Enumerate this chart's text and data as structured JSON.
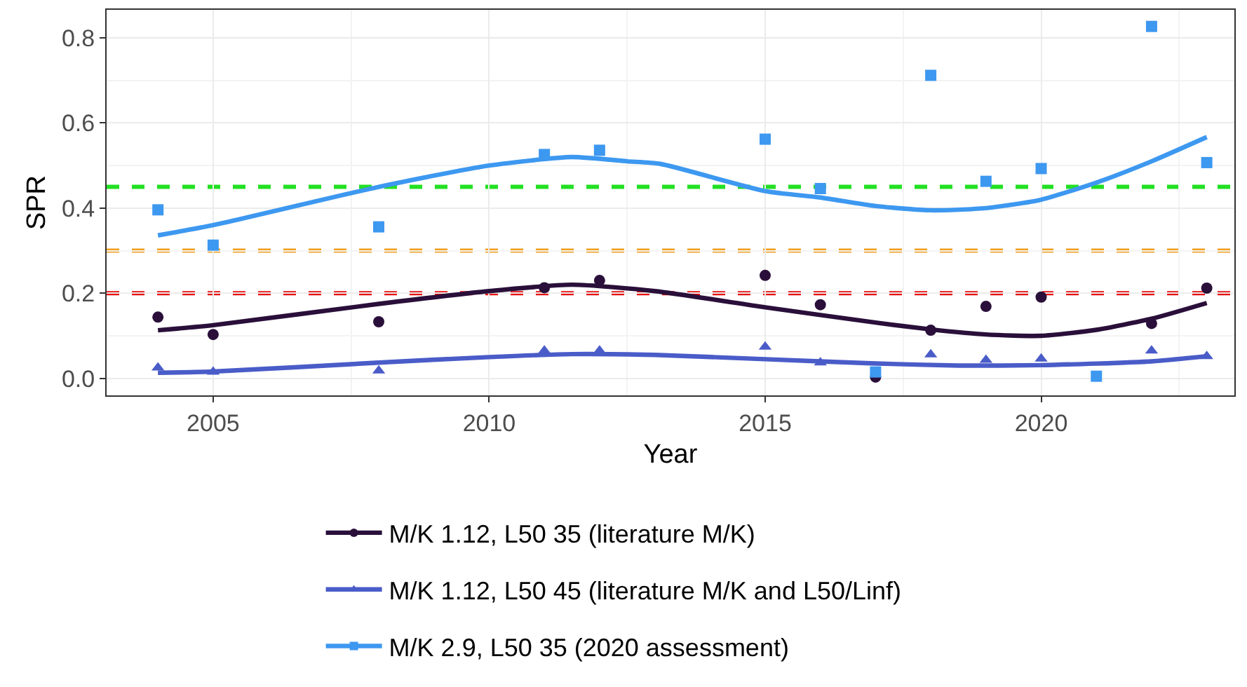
{
  "chart_data": {
    "type": "scatter",
    "xlabel": "Year",
    "ylabel": "SPR",
    "xlim": [
      2003.07,
      2023.5
    ],
    "xticks": [
      2005,
      2010,
      2015,
      2020
    ],
    "ylim": [
      -0.04,
      0.866
    ],
    "yticks": [
      {
        "value": 0,
        "label": "0.0"
      },
      {
        "value": 0.2,
        "label": "0.2"
      },
      {
        "value": 0.4,
        "label": "0.4"
      },
      {
        "value": 0.6,
        "label": "0.6"
      },
      {
        "value": 0.8,
        "label": "0.8"
      }
    ],
    "grid": true,
    "legend": "bottom",
    "series": [
      {
        "color": "#2a0f3a",
        "marker": "circle",
        "x": [
          2004,
          2005,
          2008,
          2011,
          2012,
          2015,
          2016,
          2017,
          2018,
          2019,
          2020,
          2021,
          2022,
          2023
        ],
        "values": [
          0.144,
          0.103,
          0.133,
          0.213,
          0.23,
          0.242,
          0.173,
          0.003,
          0.113,
          0.169,
          0.191,
          null,
          0.129,
          0.212
        ]
      },
      {
        "color": "#4a5cc8",
        "marker": "triangle",
        "x": [
          2004,
          2005,
          2008,
          2011,
          2012,
          2015,
          2016,
          2017,
          2018,
          2019,
          2020,
          2021,
          2022,
          2023
        ],
        "values": [
          0.025,
          0.015,
          0.018,
          0.065,
          0.065,
          0.074,
          0.037,
          null,
          0.056,
          0.043,
          0.046,
          null,
          0.065,
          0.052
        ]
      },
      {
        "color": "#3d98f0",
        "marker": "square",
        "x": [
          2004,
          2005,
          2008,
          2011,
          2012,
          2015,
          2016,
          2017,
          2018,
          2019,
          2020,
          2021,
          2022,
          2023
        ],
        "values": [
          0.396,
          0.313,
          0.356,
          0.526,
          0.536,
          0.562,
          0.446,
          0.015,
          0.712,
          0.463,
          0.493,
          0.005,
          0.827,
          0.507
        ]
      },
      {
        "type": "line",
        "name": "M/K 1.12, L50 35 (literature M/K)",
        "color": "#2a0f3a",
        "x": [
          2004,
          2005,
          2008,
          2010,
          2011.5,
          2013,
          2015,
          2017,
          2018,
          2019,
          2020,
          2021,
          2022,
          2023
        ],
        "values": [
          0.113,
          0.125,
          0.175,
          0.205,
          0.22,
          0.205,
          0.167,
          0.131,
          0.115,
          0.103,
          0.1,
          0.114,
          0.14,
          0.177
        ]
      },
      {
        "type": "line",
        "name": "M/K 1.12, L50 45 (literature M/K and L50/Linf)",
        "color": "#4a5cc8",
        "x": [
          2004,
          2005,
          2008,
          2010,
          2011.5,
          2013,
          2015,
          2017,
          2018.5,
          2020,
          2022,
          2023
        ],
        "values": [
          0.013,
          0.016,
          0.037,
          0.05,
          0.057,
          0.055,
          0.045,
          0.035,
          0.03,
          0.031,
          0.04,
          0.052
        ]
      },
      {
        "type": "line",
        "name": "M/K 2.9, L50 35 (2020 assessment)",
        "color": "#3d98f0",
        "x": [
          2004,
          2005,
          2008,
          2010,
          2011.5,
          2012.5,
          2013.1,
          2015,
          2016,
          2017,
          2018,
          2019,
          2020,
          2021,
          2022,
          2023
        ],
        "values": [
          0.336,
          0.36,
          0.45,
          0.5,
          0.52,
          0.51,
          0.504,
          0.44,
          0.425,
          0.405,
          0.395,
          0.4,
          0.42,
          0.46,
          0.51,
          0.567
        ]
      }
    ],
    "ref_lines": [
      {
        "axis": "y",
        "value": 0.45,
        "color": "#22e022",
        "line_style": "dashed"
      },
      {
        "axis": "y",
        "value": 0.3,
        "color": "#f0a020",
        "line_style": "dashed"
      },
      {
        "axis": "y",
        "value": 0.2,
        "color": "#e81010",
        "line_style": "dashed"
      }
    ]
  }
}
